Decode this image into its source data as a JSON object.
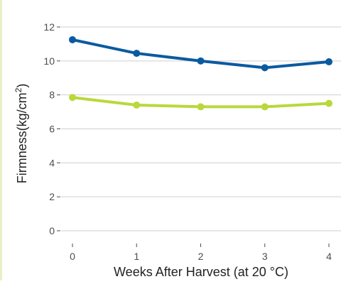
{
  "colors": {
    "series_a": "#0a5aa0",
    "series_b": "#b9d83a",
    "grid": "#cfcfcf",
    "axis_text": "#4d4d4d",
    "label_text": "#222222",
    "left_border": "#e6f0c6"
  },
  "chart_data": {
    "type": "line",
    "title": "",
    "xlabel": "Weeks After Harvest (at 20 °C)",
    "ylabel_main": "Firmness(kg/cm",
    "ylabel_sup": "2",
    "ylabel_tail": ")",
    "x": [
      0,
      1,
      2,
      3,
      4
    ],
    "x_tick_labels": [
      "0",
      "1",
      "2",
      "3",
      "4"
    ],
    "ylim": [
      0,
      12
    ],
    "y_ticks": [
      0,
      2,
      4,
      6,
      8,
      10,
      12
    ],
    "y_tick_labels": [
      "0",
      "2",
      "4",
      "6",
      "8",
      "10",
      "12"
    ],
    "grid": true,
    "legend": "none",
    "series": [
      {
        "color_key": "series_a",
        "values": [
          11.25,
          10.45,
          10.0,
          9.6,
          9.95
        ]
      },
      {
        "color_key": "series_b",
        "values": [
          7.85,
          7.4,
          7.3,
          7.3,
          7.5
        ]
      }
    ]
  }
}
